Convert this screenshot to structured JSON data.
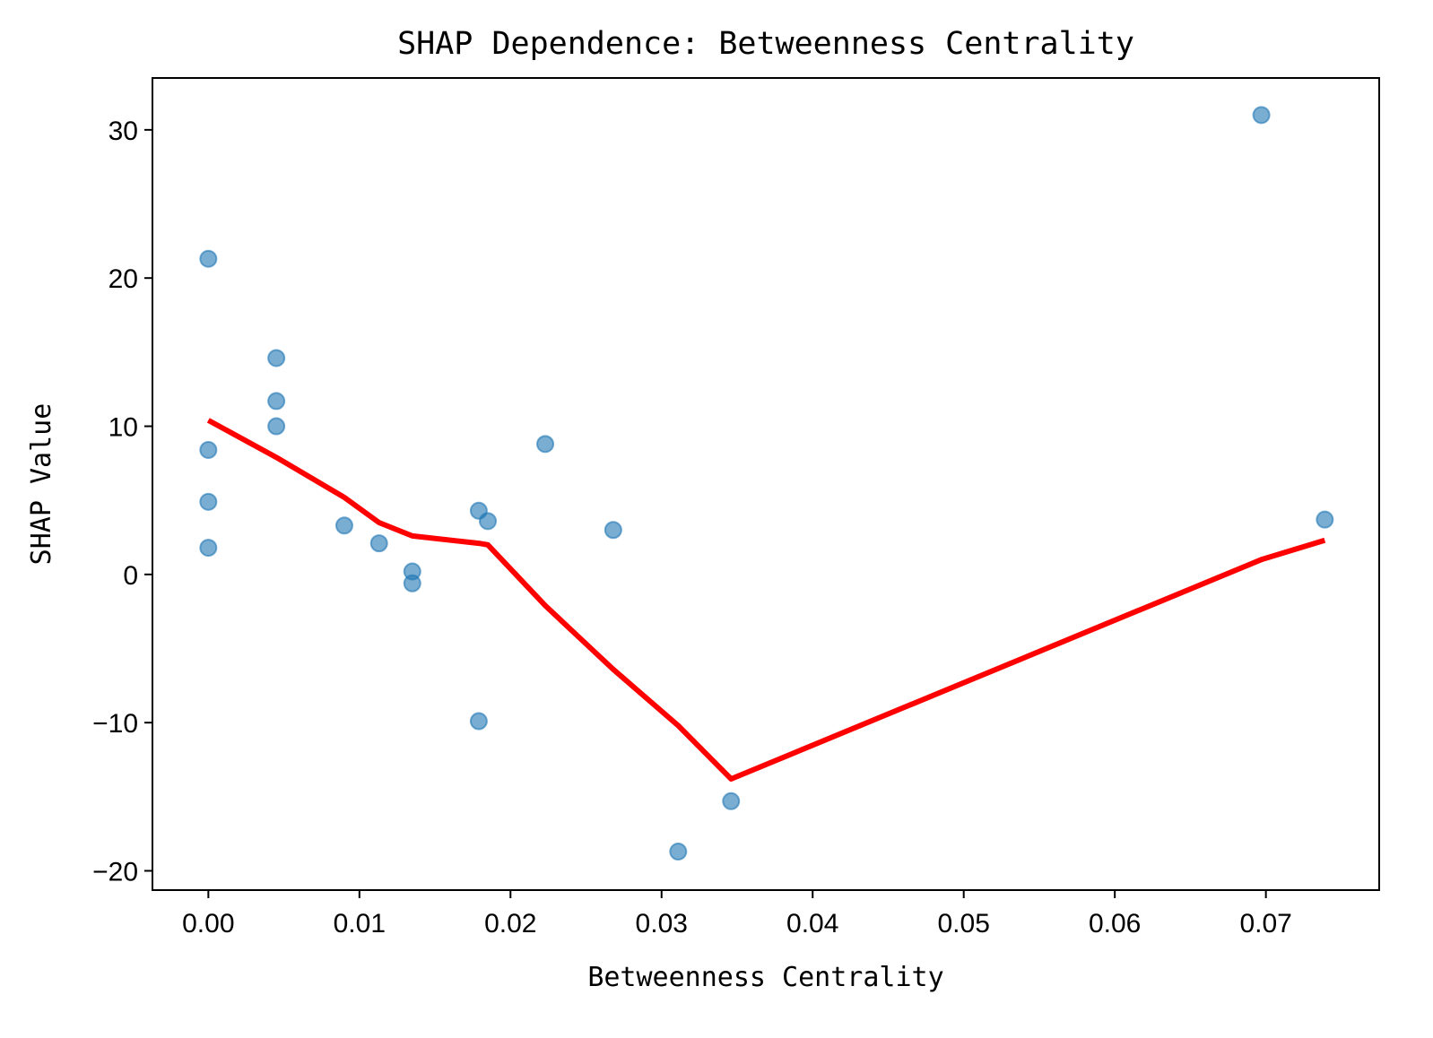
{
  "chart_data": {
    "type": "scatter",
    "title": "SHAP Dependence: Betweenness Centrality",
    "xlabel": "Betweenness Centrality",
    "ylabel": "SHAP Value",
    "xlim": [
      -0.0037,
      0.0775
    ],
    "ylim": [
      -21.3,
      33.5
    ],
    "xticks": [
      0.0,
      0.01,
      0.02,
      0.03,
      0.04,
      0.05,
      0.06,
      0.07
    ],
    "xtick_labels": [
      "0.00",
      "0.01",
      "0.02",
      "0.03",
      "0.04",
      "0.05",
      "0.06",
      "0.07"
    ],
    "yticks": [
      -20,
      -10,
      0,
      10,
      20,
      30
    ],
    "ytick_labels": [
      "−20",
      "−10",
      "0",
      "10",
      "20",
      "30"
    ],
    "grid": false,
    "series": [
      {
        "kind": "scatter",
        "color": "#1f77b4",
        "opacity": 0.6,
        "points": [
          {
            "x": 0.0,
            "y": 21.3
          },
          {
            "x": 0.0,
            "y": 8.4
          },
          {
            "x": 0.0,
            "y": 4.9
          },
          {
            "x": 0.0,
            "y": 1.8
          },
          {
            "x": 0.0045,
            "y": 14.6
          },
          {
            "x": 0.0045,
            "y": 11.7
          },
          {
            "x": 0.0045,
            "y": 10.0
          },
          {
            "x": 0.009,
            "y": 3.3
          },
          {
            "x": 0.0113,
            "y": 2.1
          },
          {
            "x": 0.0135,
            "y": 0.2
          },
          {
            "x": 0.0135,
            "y": -0.6
          },
          {
            "x": 0.0179,
            "y": 4.3
          },
          {
            "x": 0.0179,
            "y": -9.9
          },
          {
            "x": 0.0185,
            "y": 3.6
          },
          {
            "x": 0.0223,
            "y": 8.8
          },
          {
            "x": 0.0268,
            "y": 3.0
          },
          {
            "x": 0.0311,
            "y": -18.7
          },
          {
            "x": 0.0346,
            "y": -15.3
          },
          {
            "x": 0.0697,
            "y": 31.0
          },
          {
            "x": 0.0739,
            "y": 3.7
          }
        ]
      },
      {
        "kind": "line",
        "color": "#ff0000",
        "points": [
          {
            "x": 0.0,
            "y": 10.4
          },
          {
            "x": 0.0045,
            "y": 7.9
          },
          {
            "x": 0.009,
            "y": 5.2
          },
          {
            "x": 0.0113,
            "y": 3.5
          },
          {
            "x": 0.0135,
            "y": 2.6
          },
          {
            "x": 0.0179,
            "y": 2.1
          },
          {
            "x": 0.0185,
            "y": 2.0
          },
          {
            "x": 0.0223,
            "y": -2.1
          },
          {
            "x": 0.0268,
            "y": -6.4
          },
          {
            "x": 0.0311,
            "y": -10.2
          },
          {
            "x": 0.0346,
            "y": -13.8
          },
          {
            "x": 0.0697,
            "y": 1.0
          },
          {
            "x": 0.0739,
            "y": 2.3
          }
        ]
      }
    ]
  }
}
